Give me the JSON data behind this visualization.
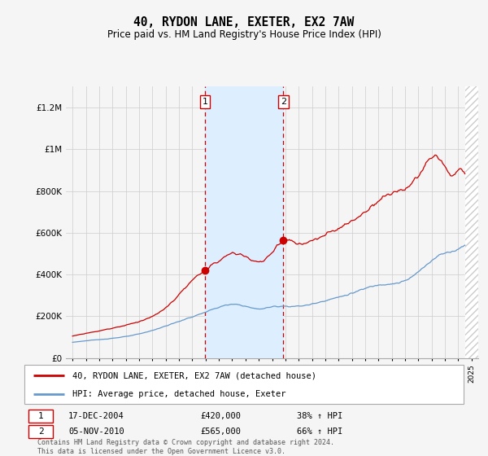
{
  "title": "40, RYDON LANE, EXETER, EX2 7AW",
  "subtitle": "Price paid vs. HM Land Registry's House Price Index (HPI)",
  "legend_label_red": "40, RYDON LANE, EXETER, EX2 7AW (detached house)",
  "legend_label_blue": "HPI: Average price, detached house, Exeter",
  "transaction1_label": "17-DEC-2004",
  "transaction1_price": "£420,000",
  "transaction1_hpi": "38% ↑ HPI",
  "transaction2_label": "05-NOV-2010",
  "transaction2_price": "£565,000",
  "transaction2_hpi": "66% ↑ HPI",
  "footer": "Contains HM Land Registry data © Crown copyright and database right 2024.\nThis data is licensed under the Open Government Licence v3.0.",
  "shade_start": 2004.96,
  "shade_end": 2010.84,
  "hatch_start": 2024.5,
  "hatch_end": 2025.5,
  "red_color": "#cc0000",
  "blue_color": "#6699cc",
  "shade_color": "#ddeeff",
  "hatch_color": "#cccccc",
  "background_color": "#f5f5f5",
  "grid_color": "#cccccc",
  "ylim": [
    0,
    1300000
  ],
  "xlim_start": 1994.5,
  "xlim_end": 2025.5,
  "sale1_x": 2004.96,
  "sale1_y": 420000,
  "sale2_x": 2010.84,
  "sale2_y": 565000
}
